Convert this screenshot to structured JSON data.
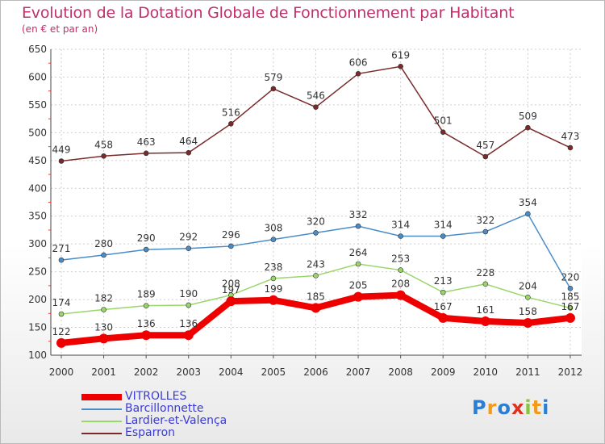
{
  "title": "Evolution de la Dotation Globale de Fonctionnement par Habitant",
  "subtitle": "(en € et par an)",
  "logo": {
    "letters": [
      "P",
      "r",
      "o",
      "x",
      "i",
      "t",
      "i"
    ],
    "colors": [
      "#2a7fd4",
      "#f29a1c",
      "#2a7fd4",
      "#e03020",
      "#8ac43c",
      "#f29a1c",
      "#2a7fd4"
    ]
  },
  "chart_data": {
    "type": "line",
    "title": "Evolution de la Dotation Globale de Fonctionnement par Habitant",
    "subtitle": "(en € et par an)",
    "x": [
      "2000",
      "2001",
      "2002",
      "2003",
      "2004",
      "2005",
      "2006",
      "2007",
      "2008",
      "2009",
      "2010",
      "2011",
      "2012"
    ],
    "ylim": [
      100,
      650
    ],
    "yticks": [
      100,
      150,
      200,
      250,
      300,
      350,
      400,
      450,
      500,
      550,
      600,
      650
    ],
    "grid": true,
    "legend_position": "bottom-left",
    "series": [
      {
        "name": "VITROLLES",
        "color": "#ee0000",
        "values": [
          122,
          130,
          136,
          136,
          197,
          199,
          185,
          205,
          208,
          167,
          161,
          158,
          167
        ]
      },
      {
        "name": "Barcillonnette",
        "color": "#4a8cc8",
        "values": [
          271,
          280,
          290,
          292,
          296,
          308,
          320,
          332,
          314,
          314,
          322,
          354,
          220
        ]
      },
      {
        "name": "Lardier-et-Valença",
        "color": "#9ad66a",
        "values": [
          174,
          182,
          189,
          190,
          208,
          238,
          243,
          264,
          253,
          213,
          228,
          204,
          185
        ]
      },
      {
        "name": "Esparron",
        "color": "#7a2a2a",
        "values": [
          449,
          458,
          463,
          464,
          516,
          579,
          546,
          606,
          619,
          501,
          457,
          509,
          473
        ]
      }
    ]
  }
}
